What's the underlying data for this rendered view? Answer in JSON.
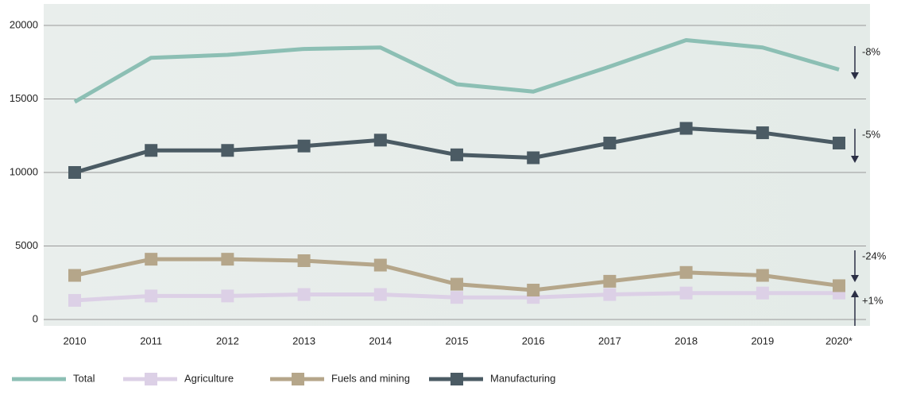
{
  "chart_data": {
    "type": "line",
    "categories": [
      "2010",
      "2011",
      "2012",
      "2013",
      "2014",
      "2015",
      "2016",
      "2017",
      "2018",
      "2019",
      "2020*"
    ],
    "series": [
      {
        "name": "Total",
        "color": "#8cbfb4",
        "marker": false,
        "values": [
          14800,
          17800,
          18000,
          18400,
          18500,
          16000,
          15500,
          17200,
          19000,
          18500,
          17000
        ]
      },
      {
        "name": "Agriculture",
        "color": "#dcd0e6",
        "marker": true,
        "values": [
          1300,
          1600,
          1600,
          1700,
          1700,
          1500,
          1500,
          1700,
          1800,
          1800,
          1800
        ]
      },
      {
        "name": "Fuels and mining",
        "color": "#b5a68a",
        "marker": true,
        "values": [
          3000,
          4100,
          4100,
          4000,
          3700,
          2400,
          2000,
          2600,
          3200,
          3000,
          2300
        ]
      },
      {
        "name": "Manufacturing",
        "color": "#4b5b64",
        "marker": true,
        "values": [
          10000,
          11500,
          11500,
          11800,
          12200,
          11200,
          11000,
          12000,
          13000,
          12700,
          12000
        ]
      }
    ],
    "annotations": [
      "-8%",
      "-5%",
      "-24%",
      "+1%"
    ],
    "ylim": [
      0,
      20000
    ],
    "yticks": [
      0,
      5000,
      10000,
      15000,
      20000
    ],
    "grid": true
  }
}
